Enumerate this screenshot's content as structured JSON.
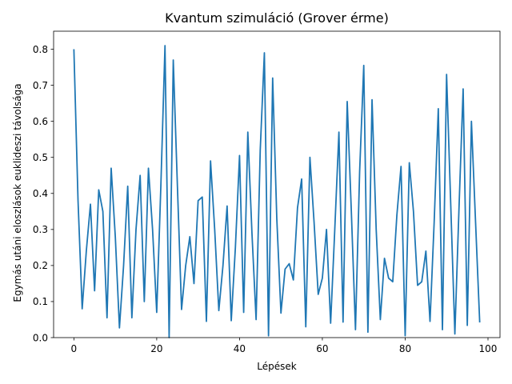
{
  "chart_data": {
    "type": "line",
    "title": "Kvantum szimuláció (Grover érme)",
    "xlabel": "Lépések",
    "ylabel": "Egymás utáni eloszlások euklideszi távolsága",
    "xlim": [
      -4.9,
      102.9
    ],
    "ylim": [
      0,
      0.85
    ],
    "xticks": [
      0,
      20,
      40,
      60,
      80,
      100
    ],
    "xtick_labels": [
      "0",
      "20",
      "40",
      "60",
      "80",
      "100"
    ],
    "yticks": [
      0,
      0.1,
      0.2,
      0.3,
      0.4,
      0.5,
      0.6,
      0.7,
      0.8
    ],
    "ytick_labels": [
      "0.0",
      "0.1",
      "0.2",
      "0.3",
      "0.4",
      "0.5",
      "0.6",
      "0.7",
      "0.8"
    ],
    "grid": false,
    "legend": "none",
    "series": [
      {
        "color": "#1f77b4",
        "x": [
          0,
          1,
          2,
          3,
          4,
          5,
          6,
          7,
          8,
          9,
          10,
          11,
          12,
          13,
          14,
          15,
          16,
          17,
          18,
          19,
          20,
          21,
          22,
          23,
          24,
          25,
          26,
          27,
          28,
          29,
          30,
          31,
          32,
          33,
          34,
          35,
          36,
          37,
          38,
          39,
          40,
          41,
          42,
          43,
          44,
          45,
          46,
          47,
          48,
          49,
          50,
          51,
          52,
          53,
          54,
          55,
          56,
          57,
          58,
          59,
          60,
          61,
          62,
          63,
          64,
          65,
          66,
          67,
          68,
          69,
          70,
          71,
          72,
          73,
          74,
          75,
          76,
          77,
          78,
          79,
          80,
          81,
          82,
          83,
          84,
          85,
          86,
          87,
          88,
          89,
          90,
          91,
          92,
          93,
          94,
          95,
          96,
          97,
          98
        ],
        "values": [
          0.8,
          0.38,
          0.08,
          0.24,
          0.37,
          0.13,
          0.41,
          0.35,
          0.055,
          0.47,
          0.28,
          0.027,
          0.2,
          0.42,
          0.055,
          0.3,
          0.45,
          0.1,
          0.47,
          0.3,
          0.07,
          0.42,
          0.81,
          0.0,
          0.77,
          0.42,
          0.078,
          0.2,
          0.28,
          0.15,
          0.38,
          0.39,
          0.045,
          0.49,
          0.3,
          0.075,
          0.2,
          0.365,
          0.047,
          0.25,
          0.505,
          0.07,
          0.57,
          0.29,
          0.05,
          0.52,
          0.79,
          0.005,
          0.72,
          0.33,
          0.068,
          0.19,
          0.205,
          0.16,
          0.36,
          0.44,
          0.03,
          0.5,
          0.32,
          0.12,
          0.165,
          0.3,
          0.04,
          0.3,
          0.57,
          0.043,
          0.655,
          0.35,
          0.022,
          0.46,
          0.755,
          0.015,
          0.66,
          0.3,
          0.05,
          0.22,
          0.165,
          0.155,
          0.34,
          0.475,
          0.005,
          0.485,
          0.35,
          0.145,
          0.155,
          0.24,
          0.045,
          0.32,
          0.635,
          0.022,
          0.73,
          0.37,
          0.01,
          0.36,
          0.69,
          0.034,
          0.6,
          0.32,
          0.042
        ]
      }
    ]
  }
}
